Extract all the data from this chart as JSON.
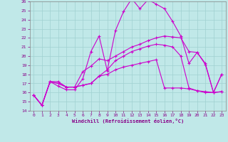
{
  "xlabel": "Windchill (Refroidissement éolien,°C)",
  "xlim": [
    -0.5,
    23.5
  ],
  "ylim": [
    14,
    26
  ],
  "xticks": [
    0,
    1,
    2,
    3,
    4,
    5,
    6,
    7,
    8,
    9,
    10,
    11,
    12,
    13,
    14,
    15,
    16,
    17,
    18,
    19,
    20,
    21,
    22,
    23
  ],
  "yticks": [
    14,
    15,
    16,
    17,
    18,
    19,
    20,
    21,
    22,
    23,
    24,
    25,
    26
  ],
  "bg_color": "#c0e8e8",
  "line_color": "#cc00cc",
  "grid_color": "#a0d0d0",
  "line1_y": [
    15.7,
    14.6,
    17.2,
    16.7,
    16.3,
    16.3,
    17.5,
    20.5,
    22.2,
    18.4,
    22.8,
    24.9,
    26.3,
    25.2,
    26.2,
    25.7,
    25.2,
    23.8,
    22.2,
    19.2,
    20.4,
    19.2,
    16.0,
    18.0
  ],
  "line2_y": [
    15.7,
    14.6,
    17.2,
    17.0,
    16.6,
    16.6,
    18.3,
    18.9,
    19.7,
    19.5,
    20.0,
    20.5,
    21.0,
    21.3,
    21.7,
    22.0,
    22.2,
    22.1,
    22.0,
    20.5,
    20.4,
    19.1,
    16.0,
    18.0
  ],
  "line3_y": [
    15.7,
    14.6,
    17.2,
    17.0,
    16.6,
    16.6,
    16.8,
    17.0,
    17.8,
    18.0,
    18.5,
    18.8,
    19.0,
    19.2,
    19.4,
    19.6,
    16.5,
    16.5,
    16.5,
    16.4,
    16.2,
    16.1,
    16.0,
    16.1
  ],
  "line4_y": [
    15.7,
    14.6,
    17.2,
    17.2,
    16.6,
    16.6,
    16.8,
    17.0,
    17.8,
    18.5,
    19.5,
    20.0,
    20.5,
    20.8,
    21.1,
    21.3,
    21.2,
    21.0,
    20.0,
    16.5,
    16.2,
    16.0,
    16.0,
    16.1
  ]
}
